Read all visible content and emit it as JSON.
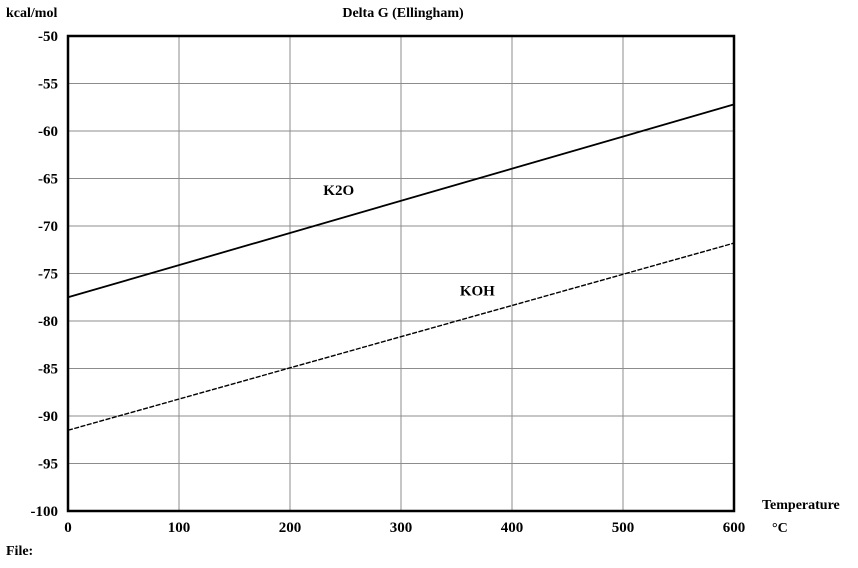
{
  "chart_data": {
    "type": "line",
    "title": "Delta G (Ellingham)",
    "ylabel": "kcal/mol",
    "xlabel": "Temperature",
    "xunit": "°C",
    "xlim": [
      0,
      600
    ],
    "ylim": [
      -100,
      -50
    ],
    "xticks": [
      0,
      100,
      200,
      300,
      400,
      500,
      600
    ],
    "yticks": [
      -50,
      -55,
      -60,
      -65,
      -70,
      -75,
      -80,
      -85,
      -90,
      -95,
      -100
    ],
    "grid": true,
    "series": [
      {
        "name": "K2O",
        "x": [
          0,
          600
        ],
        "y": [
          -77.5,
          -57.2
        ],
        "style": "solid",
        "label_at": [
          230,
          -66.2
        ]
      },
      {
        "name": "KOH",
        "x": [
          0,
          600
        ],
        "y": [
          -91.5,
          -71.8
        ],
        "style": "dotted",
        "label_at": [
          353,
          -76.8
        ]
      }
    ]
  },
  "footer": {
    "text": "File:"
  }
}
